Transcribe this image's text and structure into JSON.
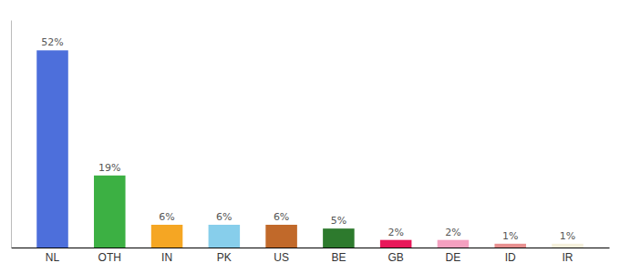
{
  "chart_data": {
    "type": "bar",
    "categories": [
      "NL",
      "OTH",
      "IN",
      "PK",
      "US",
      "BE",
      "GB",
      "DE",
      "ID",
      "IR"
    ],
    "values": [
      52,
      19,
      6,
      6,
      6,
      5,
      2,
      2,
      1,
      1
    ],
    "value_labels": [
      "52%",
      "19%",
      "6%",
      "6%",
      "6%",
      "5%",
      "2%",
      "2%",
      "1%",
      "1%"
    ],
    "colors": [
      "#4d6fdb",
      "#3cb043",
      "#f5a623",
      "#87ceeb",
      "#c1692a",
      "#2d7a2d",
      "#e8185a",
      "#f4a0c0",
      "#e89090",
      "#f5f0dc"
    ],
    "ylim": [
      0,
      60
    ],
    "data_labels": true,
    "tick_labels": "x",
    "grid": false
  }
}
